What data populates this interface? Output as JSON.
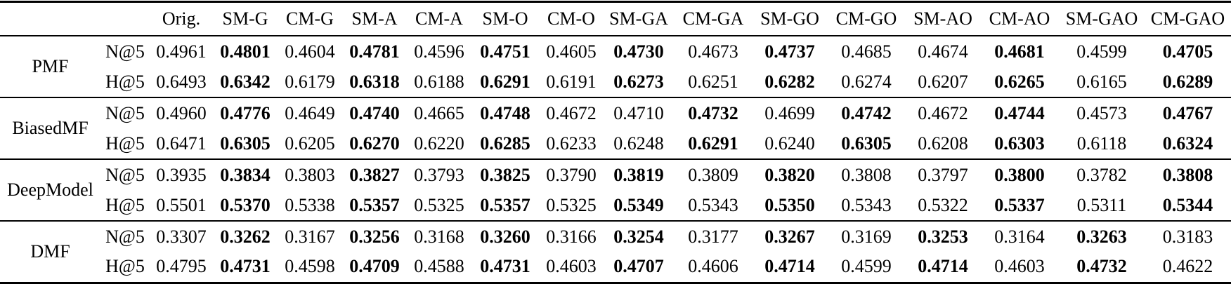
{
  "table": {
    "corner_model": "",
    "corner_metric": "",
    "columns": [
      "Orig.",
      "SM-G",
      "CM-G",
      "SM-A",
      "CM-A",
      "SM-O",
      "CM-O",
      "SM-GA",
      "CM-GA",
      "SM-GO",
      "CM-GO",
      "SM-AO",
      "CM-AO",
      "SM-GAO",
      "CM-GAO"
    ],
    "groups": [
      {
        "model": "PMF",
        "rows": [
          {
            "metric": "N@5",
            "values": [
              "0.4961",
              "0.4801",
              "0.4604",
              "0.4781",
              "0.4596",
              "0.4751",
              "0.4605",
              "0.4730",
              "0.4673",
              "0.4737",
              "0.4685",
              "0.4674",
              "0.4681",
              "0.4599",
              "0.4705"
            ],
            "bold": [
              1,
              3,
              5,
              7,
              9,
              12,
              14
            ]
          },
          {
            "metric": "H@5",
            "values": [
              "0.6493",
              "0.6342",
              "0.6179",
              "0.6318",
              "0.6188",
              "0.6291",
              "0.6191",
              "0.6273",
              "0.6251",
              "0.6282",
              "0.6274",
              "0.6207",
              "0.6265",
              "0.6165",
              "0.6289"
            ],
            "bold": [
              1,
              3,
              5,
              7,
              9,
              12,
              14
            ]
          }
        ]
      },
      {
        "model": "BiasedMF",
        "rows": [
          {
            "metric": "N@5",
            "values": [
              "0.4960",
              "0.4776",
              "0.4649",
              "0.4740",
              "0.4665",
              "0.4748",
              "0.4672",
              "0.4710",
              "0.4732",
              "0.4699",
              "0.4742",
              "0.4672",
              "0.4744",
              "0.4573",
              "0.4767"
            ],
            "bold": [
              1,
              3,
              5,
              8,
              10,
              12,
              14
            ]
          },
          {
            "metric": "H@5",
            "values": [
              "0.6471",
              "0.6305",
              "0.6205",
              "0.6270",
              "0.6220",
              "0.6285",
              "0.6233",
              "0.6248",
              "0.6291",
              "0.6240",
              "0.6305",
              "0.6208",
              "0.6303",
              "0.6118",
              "0.6324"
            ],
            "bold": [
              1,
              3,
              5,
              8,
              10,
              12,
              14
            ]
          }
        ]
      },
      {
        "model": "DeepModel",
        "rows": [
          {
            "metric": "N@5",
            "values": [
              "0.3935",
              "0.3834",
              "0.3803",
              "0.3827",
              "0.3793",
              "0.3825",
              "0.3790",
              "0.3819",
              "0.3809",
              "0.3820",
              "0.3808",
              "0.3797",
              "0.3800",
              "0.3782",
              "0.3808"
            ],
            "bold": [
              1,
              3,
              5,
              7,
              9,
              12,
              14
            ]
          },
          {
            "metric": "H@5",
            "values": [
              "0.5501",
              "0.5370",
              "0.5338",
              "0.5357",
              "0.5325",
              "0.5357",
              "0.5325",
              "0.5349",
              "0.5343",
              "0.5350",
              "0.5343",
              "0.5322",
              "0.5337",
              "0.5311",
              "0.5344"
            ],
            "bold": [
              1,
              3,
              5,
              7,
              9,
              12,
              14
            ]
          }
        ]
      },
      {
        "model": "DMF",
        "rows": [
          {
            "metric": "N@5",
            "values": [
              "0.3307",
              "0.3262",
              "0.3167",
              "0.3256",
              "0.3168",
              "0.3260",
              "0.3166",
              "0.3254",
              "0.3177",
              "0.3267",
              "0.3169",
              "0.3253",
              "0.3164",
              "0.3263",
              "0.3183"
            ],
            "bold": [
              1,
              3,
              5,
              7,
              9,
              11,
              13
            ]
          },
          {
            "metric": "H@5",
            "values": [
              "0.4795",
              "0.4731",
              "0.4598",
              "0.4709",
              "0.4588",
              "0.4731",
              "0.4603",
              "0.4707",
              "0.4606",
              "0.4714",
              "0.4599",
              "0.4714",
              "0.4603",
              "0.4732",
              "0.4622"
            ],
            "bold": [
              1,
              3,
              5,
              7,
              9,
              11,
              13
            ]
          }
        ]
      }
    ]
  }
}
